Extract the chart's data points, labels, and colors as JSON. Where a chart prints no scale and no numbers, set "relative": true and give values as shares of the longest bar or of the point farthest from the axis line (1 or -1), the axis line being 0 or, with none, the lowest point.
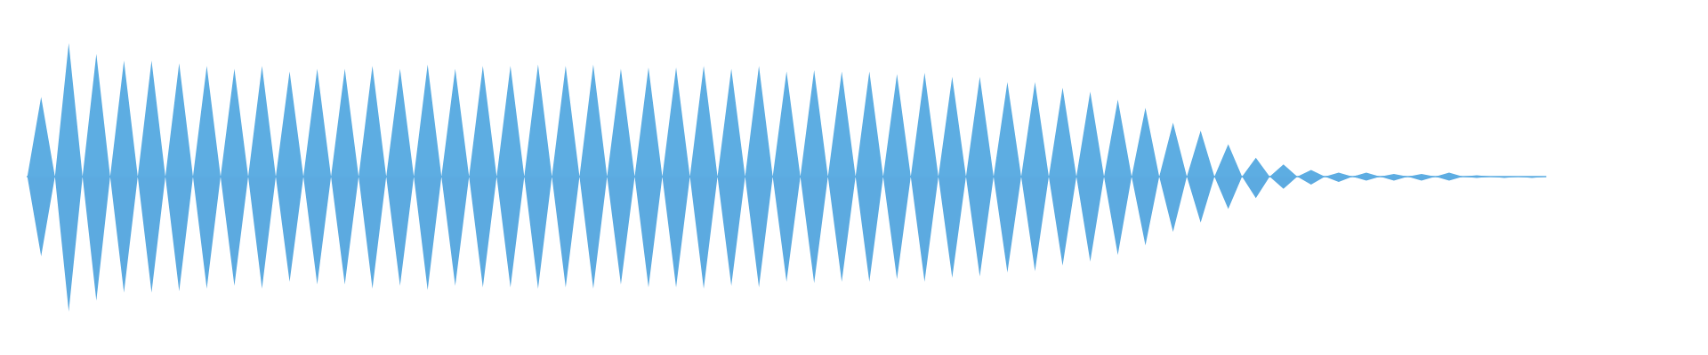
{
  "chart_data": {
    "type": "area",
    "relative": true,
    "categories": [
      null,
      null,
      null,
      null,
      null,
      null,
      null,
      null,
      null,
      null,
      null,
      null,
      null,
      null,
      null,
      null,
      null,
      null,
      null,
      null,
      null,
      null,
      null,
      null,
      null,
      null,
      null,
      null,
      null,
      null,
      null,
      null,
      null,
      null,
      null,
      null,
      null,
      null,
      null,
      null,
      null,
      null,
      null,
      null,
      null,
      null,
      null,
      null,
      null,
      null,
      null,
      null,
      null,
      null,
      null,
      null,
      null,
      null,
      null,
      null,
      null,
      null,
      null,
      null,
      null,
      null,
      null,
      null,
      null,
      null,
      null,
      null,
      null,
      null,
      null,
      null,
      null,
      null,
      null,
      null,
      null,
      null,
      null,
      null,
      null,
      null,
      null,
      null,
      null,
      null,
      null,
      null,
      null,
      null,
      null,
      null,
      null,
      null,
      null,
      null,
      null,
      null,
      null,
      null,
      null,
      null,
      null,
      null,
      null,
      null,
      null
    ],
    "series": [
      {
        "color": "#5dade2",
        "values": [
          0,
          0.59,
          0,
          0.99,
          0,
          0.91,
          0,
          0.86,
          0,
          0.86,
          0,
          0.84,
          0,
          0.82,
          0,
          0.8,
          0,
          0.82,
          0,
          0.78,
          0,
          0.8,
          0,
          0.8,
          0,
          0.82,
          0,
          0.8,
          0,
          0.83,
          0,
          0.8,
          0,
          0.82,
          0,
          0.82,
          0,
          0.83,
          0,
          0.82,
          0,
          0.83,
          0,
          0.8,
          0,
          0.81,
          0,
          0.81,
          0,
          0.82,
          0,
          0.8,
          0,
          0.82,
          0,
          0.78,
          0,
          0.79,
          0,
          0.78,
          0,
          0.78,
          0,
          0.76,
          0,
          0.77,
          0,
          0.74,
          0,
          0.74,
          0,
          0.7,
          0,
          0.7,
          0,
          0.66,
          0,
          0.63,
          0,
          0.57,
          0,
          0.51,
          0,
          0.4,
          0,
          0.34,
          0,
          0.24,
          0,
          0.14,
          0,
          0.09,
          0,
          0.05,
          0,
          0.03,
          0,
          0.03,
          0,
          0.02,
          0,
          0.02,
          0,
          0.03,
          0,
          0.01,
          0,
          0,
          0,
          0,
          0
        ]
      },
      {
        "color": "#5caae0",
        "values": [
          0,
          -0.59,
          0,
          -1,
          0,
          -0.92,
          0,
          -0.86,
          0,
          -0.86,
          0,
          -0.85,
          0,
          -0.83,
          0,
          -0.81,
          0,
          -0.83,
          0,
          -0.78,
          0,
          -0.8,
          0,
          -0.8,
          0,
          -0.83,
          0,
          -0.81,
          0,
          -0.84,
          0,
          -0.81,
          0,
          -0.82,
          0,
          -0.82,
          0,
          -0.83,
          0,
          -0.82,
          0,
          -0.83,
          0,
          -0.8,
          0,
          -0.82,
          0,
          -0.82,
          0,
          -0.83,
          0,
          -0.81,
          0,
          -0.82,
          0,
          -0.78,
          0,
          -0.79,
          0,
          -0.78,
          0,
          -0.78,
          0,
          -0.76,
          0,
          -0.78,
          0,
          -0.75,
          0,
          -0.74,
          0,
          -0.71,
          0,
          -0.7,
          0,
          -0.66,
          0,
          -0.63,
          0,
          -0.58,
          0,
          -0.51,
          0,
          -0.41,
          0,
          -0.34,
          0,
          -0.24,
          0,
          -0.16,
          0,
          -0.09,
          0,
          -0.06,
          0,
          -0.04,
          0,
          -0.03,
          0,
          -0.03,
          0,
          -0.03,
          0,
          -0.03,
          0,
          -0.01,
          0,
          -0.01,
          0,
          -0.01,
          0
        ]
      }
    ]
  }
}
